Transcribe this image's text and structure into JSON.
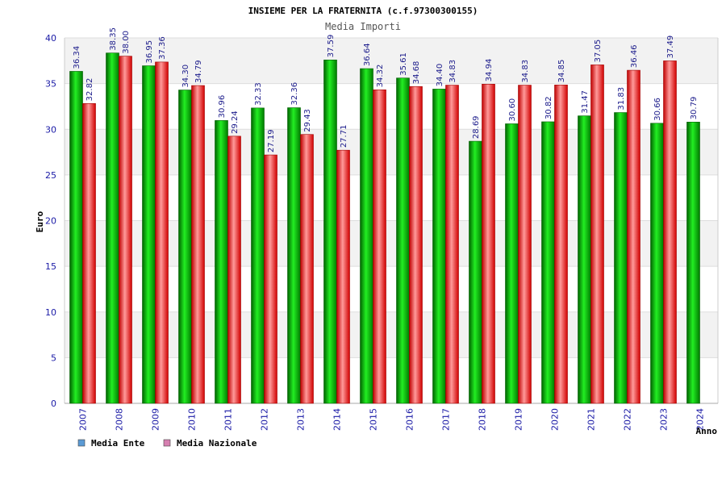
{
  "chart_data": {
    "type": "bar",
    "title": "INSIEME PER LA FRATERNITA (c.f.97300300155)",
    "subtitle": "Media Importi",
    "xlabel": "Anno",
    "ylabel": "Euro",
    "ylim": [
      0,
      40
    ],
    "yticks": [
      0,
      5,
      10,
      15,
      20,
      25,
      30,
      35,
      40
    ],
    "grid": true,
    "legend_position": "bottom-left",
    "categories": [
      "2007",
      "2008",
      "2009",
      "2010",
      "2011",
      "2012",
      "2013",
      "2014",
      "2015",
      "2016",
      "2017",
      "2018",
      "2019",
      "2020",
      "2021",
      "2022",
      "2023",
      "2024"
    ],
    "series": [
      {
        "name": "Media Ente",
        "color": "#00b000",
        "legend_color": "#5b9bd5",
        "values": [
          36.34,
          38.35,
          36.95,
          34.3,
          30.96,
          32.33,
          32.36,
          37.59,
          36.64,
          35.61,
          34.4,
          28.69,
          30.6,
          30.82,
          31.47,
          31.83,
          30.66,
          30.79
        ],
        "labels": [
          "36.34",
          "38.35",
          "36.95",
          "34.30",
          "30.96",
          "32.33",
          "32.36",
          "37.59",
          "36.64",
          "35.61",
          "34.40",
          "28.69",
          "30.60",
          "30.82",
          "31.47",
          "31.83",
          "30.66",
          "30.79"
        ]
      },
      {
        "name": "Media Nazionale",
        "color": "#e02020",
        "legend_color": "#d67fb0",
        "values": [
          32.82,
          38.0,
          37.36,
          34.79,
          29.24,
          27.19,
          29.43,
          27.71,
          34.32,
          34.68,
          34.83,
          34.94,
          34.83,
          34.85,
          37.05,
          36.46,
          37.49,
          null
        ],
        "labels": [
          "32.82",
          "38.00",
          "37.36",
          "34.79",
          "29.24",
          "27.19",
          "29.43",
          "27.71",
          "34.32",
          "34.68",
          "34.83",
          "34.94",
          "34.83",
          "34.85",
          "37.05",
          "36.46",
          "37.49",
          null
        ]
      }
    ]
  }
}
